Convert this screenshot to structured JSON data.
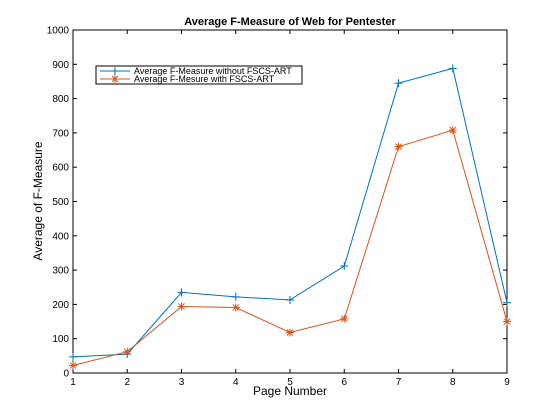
{
  "chart_data": {
    "type": "line",
    "title": "Average F-Measure of Web for Pentester",
    "xlabel": "Page Number",
    "ylabel": "Average of F-Measure",
    "x": [
      1,
      2,
      3,
      4,
      5,
      6,
      7,
      8,
      9
    ],
    "xlim": [
      1,
      9
    ],
    "ylim": [
      0,
      1000
    ],
    "xticks": [
      "1",
      "2",
      "3",
      "4",
      "5",
      "6",
      "7",
      "8",
      "9"
    ],
    "yticks": [
      "0",
      "100",
      "200",
      "300",
      "400",
      "500",
      "600",
      "700",
      "800",
      "900",
      "1000"
    ],
    "grid": false,
    "legend_position": "top-left",
    "series": [
      {
        "name": "Average F-Measure without FSCS-ART",
        "color": "#0072bd",
        "marker": "plus",
        "values": [
          47,
          55,
          235,
          222,
          213,
          312,
          845,
          888,
          205
        ]
      },
      {
        "name": "Average F-Mesure with FSCS-ART",
        "color": "#d95319",
        "marker": "asterisk",
        "values": [
          22,
          62,
          194,
          191,
          118,
          158,
          660,
          708,
          150
        ]
      }
    ]
  }
}
